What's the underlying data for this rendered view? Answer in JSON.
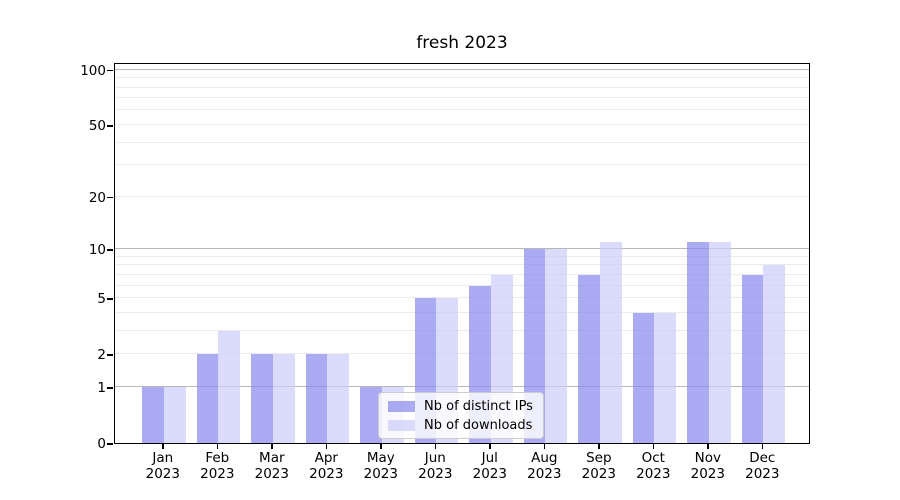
{
  "title": "fresh 2023",
  "chart_data": {
    "type": "bar",
    "title": "fresh 2023",
    "categories": [
      "Jan",
      "Feb",
      "Mar",
      "Apr",
      "May",
      "Jun",
      "Jul",
      "Aug",
      "Sep",
      "Oct",
      "Nov",
      "Dec"
    ],
    "category_year": "2023",
    "series": [
      {
        "name": "Nb of distinct IPs",
        "color": "rgba(136,136,238,0.7)",
        "values": [
          1,
          2,
          2,
          2,
          1,
          5,
          6,
          10,
          7,
          4,
          11,
          7
        ]
      },
      {
        "name": "Nb of downloads",
        "color": "rgba(204,204,250,0.7)",
        "values": [
          1,
          3,
          2,
          2,
          1,
          5,
          7,
          10,
          11,
          4,
          11,
          8
        ]
      }
    ],
    "y_scale": "log10(1+v)",
    "ylim": [
      0,
      110
    ],
    "y_tick_labels": [
      "0",
      "1",
      "2",
      "5",
      "10",
      "20",
      "50",
      "100"
    ],
    "y_tick_values": [
      0,
      1,
      2,
      5,
      10,
      20,
      50,
      100
    ],
    "grid_major_values": [
      1,
      10,
      100
    ],
    "grid_minor_values": [
      2,
      3,
      4,
      5,
      6,
      7,
      8,
      9,
      20,
      30,
      40,
      50,
      60,
      70,
      80,
      90
    ],
    "grid": true,
    "legend_position": "lower center"
  },
  "colors": {
    "bar_distinct_ips": "rgba(136,136,238,0.7)",
    "bar_downloads": "rgba(204,204,250,0.7)",
    "grid_major": "#b8b8b8",
    "grid_minor": "#ebebeb",
    "axis": "#000000",
    "legend_border": "#cccccc"
  }
}
